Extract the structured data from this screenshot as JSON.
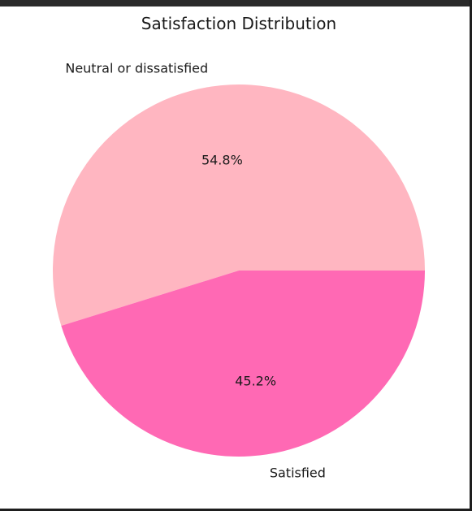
{
  "chart_data": {
    "type": "pie",
    "title": "Satisfaction Distribution",
    "categories": [
      "Neutral or dissatisfied",
      "Satisfied"
    ],
    "values": [
      54.8,
      45.2
    ],
    "percent_labels": [
      "54.8%",
      "45.2%"
    ],
    "colors": [
      "#ffb6c1",
      "#ff69b4"
    ],
    "start_angle_deg": 0,
    "direction": "counterclockwise",
    "legend": "none"
  }
}
